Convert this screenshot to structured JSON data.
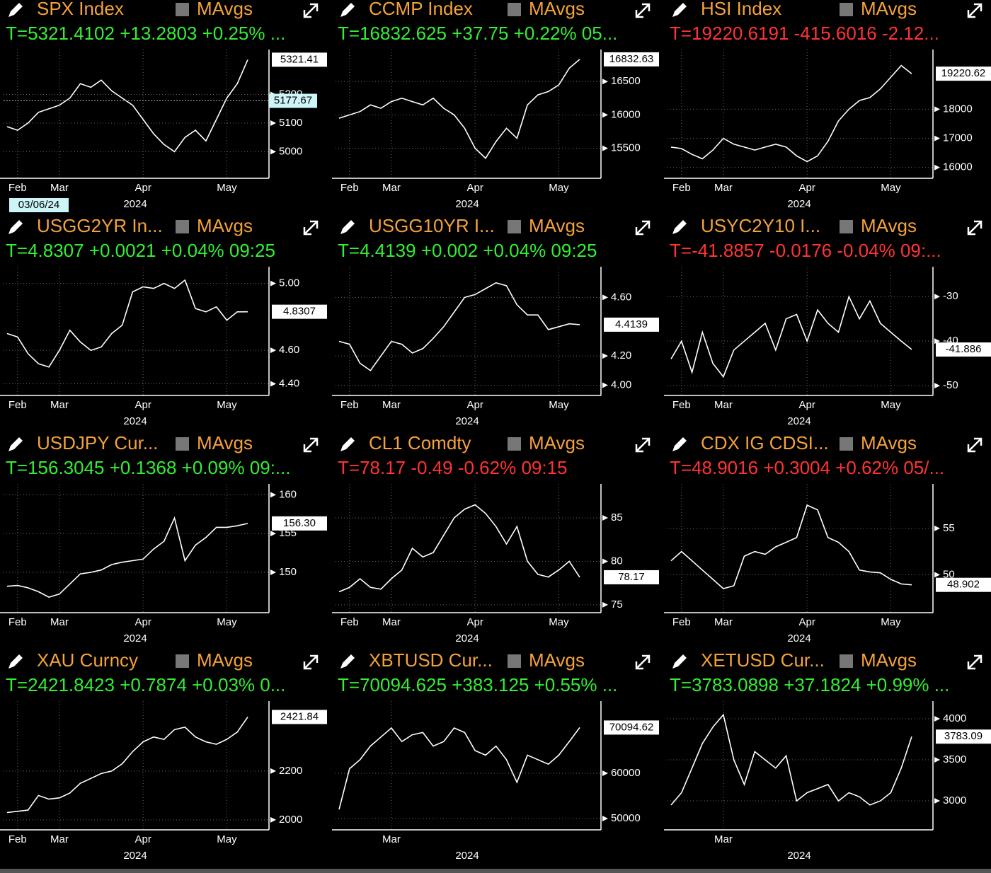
{
  "chart_data": [
    {
      "type": "line",
      "title": "SPX Index",
      "legend": "MAvgs",
      "subtitle": "T=5321.4102 +13.2803 +0.25% ...",
      "subtitle_color": "#33ee33",
      "x_label": "2024",
      "color": "#ffffff",
      "grid": true,
      "categories": [
        null,
        "Feb",
        null,
        null,
        null,
        "Mar",
        null,
        null,
        null,
        null,
        null,
        null,
        null,
        "Apr",
        null,
        null,
        null,
        null,
        null,
        null,
        null,
        "May",
        null,
        null
      ],
      "values": [
        5087.5,
        5075,
        5100,
        5137.5,
        5150,
        5162.5,
        5187.5,
        5237.5,
        5225,
        5250,
        5212.5,
        5187.5,
        5162.5,
        5112.5,
        5062.5,
        5025,
        5000,
        5050,
        5075,
        5037.5,
        5112.5,
        5187.5,
        5237.5,
        5321.4102
      ],
      "value_labels": [
        null,
        null,
        null,
        null,
        null,
        null,
        null,
        null,
        null,
        null,
        null,
        null,
        null,
        null,
        null,
        null,
        null,
        null,
        null,
        null,
        null,
        null,
        null,
        "5321.41"
      ],
      "ylim": [
        4907,
        5357
      ],
      "yticks": [
        5000,
        5100,
        5200
      ],
      "cursor": {
        "value": 5177.67,
        "label": "5177.67"
      },
      "cursor_date": "03/06/24"
    },
    {
      "type": "line",
      "title": "CCMP Index",
      "legend": "MAvgs",
      "subtitle": "T=16832.625 +37.75 +0.22% 05...",
      "subtitle_color": "#33ee33",
      "x_label": "2024",
      "color": "#ffffff",
      "grid": true,
      "categories": [
        null,
        "Feb",
        null,
        null,
        null,
        "Mar",
        null,
        null,
        null,
        null,
        null,
        null,
        null,
        "Apr",
        null,
        null,
        null,
        null,
        null,
        null,
        null,
        "May",
        null,
        null
      ],
      "values": [
        15950,
        16000,
        16050,
        16150,
        16100,
        16200,
        16250,
        16200,
        16150,
        16250,
        16100,
        16000,
        15800,
        15500,
        15350,
        15600,
        15800,
        15650,
        16150,
        16300,
        16350,
        16450,
        16700,
        16832.625
      ],
      "value_labels": [
        null,
        null,
        null,
        null,
        null,
        null,
        null,
        null,
        null,
        null,
        null,
        null,
        null,
        null,
        null,
        null,
        null,
        null,
        null,
        null,
        null,
        null,
        null,
        "16832.63"
      ],
      "ylim": [
        15050,
        16980
      ],
      "yticks": [
        15500,
        16000,
        16500
      ]
    },
    {
      "type": "line",
      "title": "HSI Index",
      "legend": "MAvgs",
      "subtitle": "T=19220.6191 -415.6016 -2.12...",
      "subtitle_color": "#ff3333",
      "x_label": "2024",
      "color": "#ffffff",
      "grid": true,
      "categories": [
        null,
        "Feb",
        null,
        null,
        null,
        "Mar",
        null,
        null,
        null,
        null,
        null,
        null,
        null,
        "Apr",
        null,
        null,
        null,
        null,
        null,
        null,
        null,
        "May",
        null,
        null
      ],
      "values": [
        16700,
        16650,
        16450,
        16300,
        16600,
        17000,
        16800,
        16700,
        16600,
        16700,
        16800,
        16700,
        16400,
        16200,
        16400,
        16900,
        17600,
        18000,
        18300,
        18400,
        18700,
        19100,
        19500,
        19220.6191
      ],
      "value_labels": [
        null,
        null,
        null,
        null,
        null,
        null,
        null,
        null,
        null,
        null,
        null,
        null,
        null,
        null,
        null,
        null,
        null,
        null,
        null,
        null,
        null,
        null,
        null,
        "19220.62"
      ],
      "ylim": [
        15630,
        20050
      ],
      "yticks": [
        16000,
        17000,
        18000
      ]
    },
    {
      "type": "line",
      "title": "USGG2YR In...",
      "legend": "MAvgs",
      "subtitle": "T=4.8307 +0.0021 +0.04% 09:25",
      "subtitle_color": "#33ee33",
      "x_label": "2024",
      "color": "#ffffff",
      "grid": true,
      "categories": [
        null,
        "Feb",
        null,
        null,
        null,
        "Mar",
        null,
        null,
        null,
        null,
        null,
        null,
        null,
        "Apr",
        null,
        null,
        null,
        null,
        null,
        null,
        null,
        "May",
        null,
        null
      ],
      "values": [
        4.7,
        4.68,
        4.58,
        4.52,
        4.5,
        4.6,
        4.72,
        4.65,
        4.6,
        4.62,
        4.7,
        4.75,
        4.95,
        4.98,
        4.97,
        5.0,
        4.97,
        5.02,
        4.85,
        4.83,
        4.86,
        4.78,
        4.83,
        4.8307
      ],
      "value_labels": [
        null,
        null,
        null,
        null,
        null,
        null,
        null,
        null,
        null,
        null,
        null,
        null,
        null,
        null,
        null,
        null,
        null,
        null,
        null,
        null,
        null,
        null,
        null,
        "4.8307"
      ],
      "ylim": [
        4.33,
        5.1
      ],
      "yticks": [
        {
          "value": 4.4,
          "label": "4.40"
        },
        {
          "value": 4.6,
          "label": "4.60"
        },
        {
          "value": 5,
          "label": "5.00"
        }
      ]
    },
    {
      "type": "line",
      "title": "USGG10YR I...",
      "legend": "MAvgs",
      "subtitle": "T=4.4139 +0.002 +0.04% 09:25",
      "subtitle_color": "#33ee33",
      "x_label": "2024",
      "color": "#ffffff",
      "grid": true,
      "categories": [
        null,
        "Feb",
        null,
        null,
        null,
        "Mar",
        null,
        null,
        null,
        null,
        null,
        null,
        null,
        "Apr",
        null,
        null,
        null,
        null,
        null,
        null,
        null,
        "May",
        null,
        null
      ],
      "values": [
        4.3,
        4.28,
        4.15,
        4.1,
        4.2,
        4.3,
        4.28,
        4.22,
        4.25,
        4.32,
        4.4,
        4.5,
        4.6,
        4.62,
        4.66,
        4.7,
        4.68,
        4.55,
        4.48,
        4.48,
        4.38,
        4.4,
        4.42,
        4.4139
      ],
      "value_labels": [
        null,
        null,
        null,
        null,
        null,
        null,
        null,
        null,
        null,
        null,
        null,
        null,
        null,
        null,
        null,
        null,
        null,
        null,
        null,
        null,
        null,
        null,
        null,
        "4.4139"
      ],
      "ylim": [
        3.93,
        4.81
      ],
      "yticks": [
        {
          "value": 4,
          "label": "4.00"
        },
        {
          "value": 4.2,
          "label": "4.20"
        },
        {
          "value": 4.6,
          "label": "4.60"
        }
      ]
    },
    {
      "type": "line",
      "title": "USYC2Y10 I...",
      "legend": "MAvgs",
      "subtitle": "T=-41.8857 -0.0176 -0.04% 09:...",
      "subtitle_color": "#ff3333",
      "x_label": "2024",
      "color": "#ffffff",
      "grid": true,
      "categories": [
        null,
        "Feb",
        null,
        null,
        null,
        "Mar",
        null,
        null,
        null,
        null,
        null,
        null,
        null,
        "Apr",
        null,
        null,
        null,
        null,
        null,
        null,
        null,
        "May",
        null,
        null
      ],
      "values": [
        -44,
        -40,
        -47,
        -38,
        -45,
        -48,
        -42,
        -40,
        -38,
        -36,
        -42,
        -35,
        -34,
        -40,
        -33,
        -36,
        -38,
        -30,
        -35,
        -31,
        -36,
        -38,
        -40,
        -41.8857
      ],
      "value_labels": [
        null,
        null,
        null,
        null,
        null,
        null,
        null,
        null,
        null,
        null,
        null,
        null,
        null,
        null,
        null,
        null,
        null,
        null,
        null,
        null,
        null,
        null,
        null,
        "-41.886"
      ],
      "ylim": [
        -52.2,
        -23.3
      ],
      "yticks": [
        -30,
        -40,
        -50
      ]
    },
    {
      "type": "line",
      "title": "USDJPY Cur...",
      "legend": "MAvgs",
      "subtitle": "T=156.3045 +0.1368 +0.09% 09:...",
      "subtitle_color": "#33ee33",
      "x_label": "2024",
      "color": "#ffffff",
      "grid": true,
      "categories": [
        null,
        "Feb",
        null,
        null,
        null,
        "Mar",
        null,
        null,
        null,
        null,
        null,
        null,
        null,
        "Apr",
        null,
        null,
        null,
        null,
        null,
        null,
        null,
        "May",
        null,
        null
      ],
      "values": [
        148.2,
        148.3,
        148.0,
        147.5,
        146.8,
        147.2,
        148.5,
        149.8,
        150.0,
        150.3,
        151.0,
        151.3,
        151.5,
        151.7,
        153,
        154,
        157,
        151.5,
        153.5,
        154.5,
        155.8,
        155.8,
        156.0,
        156.3045
      ],
      "value_labels": [
        null,
        null,
        null,
        null,
        null,
        null,
        null,
        null,
        null,
        null,
        null,
        null,
        null,
        null,
        null,
        null,
        null,
        null,
        null,
        null,
        null,
        null,
        null,
        "156.30"
      ],
      "ylim": [
        144.8,
        161.4
      ],
      "yticks": [
        150,
        155,
        160
      ]
    },
    {
      "type": "line",
      "title": "CL1 Comdty",
      "legend": "MAvgs",
      "subtitle": "T=78.17 -0.49 -0.62% 09:15",
      "subtitle_color": "#ff3333",
      "x_label": "2024",
      "color": "#ffffff",
      "grid": true,
      "categories": [
        null,
        "Feb",
        null,
        null,
        null,
        "Mar",
        null,
        null,
        null,
        null,
        null,
        null,
        null,
        "Apr",
        null,
        null,
        null,
        null,
        null,
        null,
        null,
        "May",
        null,
        null
      ],
      "values": [
        76.5,
        77,
        78,
        77,
        76.8,
        78,
        79,
        81.5,
        80.5,
        81,
        83,
        85,
        86,
        86.5,
        85.5,
        84,
        82,
        84,
        80,
        78.5,
        78.2,
        79,
        80,
        78.17
      ],
      "value_labels": [
        null,
        null,
        null,
        null,
        null,
        null,
        null,
        null,
        null,
        null,
        null,
        null,
        null,
        null,
        null,
        null,
        null,
        null,
        null,
        null,
        null,
        null,
        null,
        "78.17"
      ],
      "ylim": [
        74.1,
        88.9
      ],
      "yticks": [
        75,
        80,
        85
      ]
    },
    {
      "type": "line",
      "title": "CDX IG CDSI...",
      "legend": "MAvgs",
      "subtitle": "T=48.9016 +0.3004 +0.62% 05/...",
      "subtitle_color": "#ff3333",
      "x_label": "2024",
      "color": "#ffffff",
      "grid": true,
      "categories": [
        null,
        "Feb",
        null,
        null,
        null,
        "Mar",
        null,
        null,
        null,
        null,
        null,
        null,
        null,
        "Apr",
        null,
        null,
        null,
        null,
        null,
        null,
        null,
        "May",
        null,
        null
      ],
      "values": [
        51.5,
        52.5,
        51.5,
        50.5,
        49.5,
        48.5,
        48.8,
        52,
        52.5,
        52.2,
        53,
        53.5,
        54,
        57.5,
        57,
        54,
        53.5,
        52.5,
        50.5,
        50.3,
        50.2,
        49.5,
        49,
        48.9016
      ],
      "value_labels": [
        null,
        null,
        null,
        null,
        null,
        null,
        null,
        null,
        null,
        null,
        null,
        null,
        null,
        null,
        null,
        null,
        null,
        null,
        null,
        null,
        null,
        null,
        null,
        "48.902"
      ],
      "ylim": [
        45.9,
        59.8
      ],
      "yticks": [
        50,
        55
      ]
    },
    {
      "type": "line",
      "title": "XAU Curncy",
      "legend": "MAvgs",
      "subtitle": "T=2421.8423 +0.7874 +0.03% 0...",
      "subtitle_color": "#33ee33",
      "x_label": "2024",
      "color": "#ffffff",
      "grid": true,
      "categories": [
        null,
        "Feb",
        null,
        null,
        null,
        "Mar",
        null,
        null,
        null,
        null,
        null,
        null,
        null,
        "Apr",
        null,
        null,
        null,
        null,
        null,
        null,
        null,
        "May",
        null,
        null
      ],
      "values": [
        2030,
        2035,
        2040,
        2100,
        2085,
        2090,
        2110,
        2150,
        2170,
        2190,
        2200,
        2230,
        2280,
        2320,
        2340,
        2330,
        2370,
        2380,
        2340,
        2320,
        2310,
        2330,
        2360,
        2421.8423
      ],
      "value_labels": [
        null,
        null,
        null,
        null,
        null,
        null,
        null,
        null,
        null,
        null,
        null,
        null,
        null,
        null,
        null,
        null,
        null,
        null,
        null,
        null,
        null,
        null,
        null,
        "2421.84"
      ],
      "ylim": [
        1959,
        2487
      ],
      "yticks": [
        2000,
        2200
      ]
    },
    {
      "type": "line",
      "title": "XBTUSD Cur...",
      "legend": "MAvgs",
      "subtitle": "T=70094.625 +383.125 +0.55% ...",
      "subtitle_color": "#33ee33",
      "x_label": "2024",
      "color": "#ffffff",
      "grid": true,
      "categories": [
        null,
        null,
        null,
        null,
        null,
        "Mar",
        null,
        null,
        null,
        null,
        null,
        null,
        null,
        null,
        null,
        null,
        null,
        null,
        null,
        null,
        null,
        null,
        null,
        null
      ],
      "values": [
        52000,
        61000,
        63000,
        66000,
        68000,
        70000,
        67000,
        68500,
        69000,
        66000,
        67000,
        70000,
        69000,
        65000,
        64000,
        66000,
        63000,
        58000,
        64000,
        63000,
        62000,
        64000,
        67000,
        70094.625
      ],
      "value_labels": [
        null,
        null,
        null,
        null,
        null,
        null,
        null,
        null,
        null,
        null,
        null,
        null,
        null,
        null,
        null,
        null,
        null,
        null,
        null,
        null,
        null,
        null,
        null,
        "70094.62"
      ],
      "ylim": [
        47500,
        75940
      ],
      "yticks": [
        50000,
        60000
      ]
    },
    {
      "type": "line",
      "title": "XETUSD Cur...",
      "legend": "MAvgs",
      "subtitle": "T=3783.0898 +37.1824 +0.99% ...",
      "subtitle_color": "#33ee33",
      "x_label": "2024",
      "color": "#ffffff",
      "grid": true,
      "categories": [
        null,
        null,
        null,
        null,
        null,
        "Mar",
        null,
        null,
        null,
        null,
        null,
        null,
        null,
        null,
        null,
        null,
        null,
        null,
        null,
        null,
        null,
        null,
        null,
        null
      ],
      "values": [
        2950,
        3100,
        3400,
        3700,
        3900,
        4050,
        3500,
        3200,
        3600,
        3500,
        3400,
        3550,
        3000,
        3100,
        3150,
        3200,
        3000,
        3100,
        3050,
        2950,
        3000,
        3100,
        3400,
        3783.0898
      ],
      "value_labels": [
        null,
        null,
        null,
        null,
        null,
        null,
        null,
        null,
        null,
        null,
        null,
        null,
        null,
        null,
        null,
        null,
        null,
        null,
        null,
        null,
        null,
        null,
        null,
        "3783.09"
      ],
      "ylim": [
        2647,
        4216
      ],
      "yticks": [
        3000,
        3500,
        4000
      ]
    }
  ]
}
